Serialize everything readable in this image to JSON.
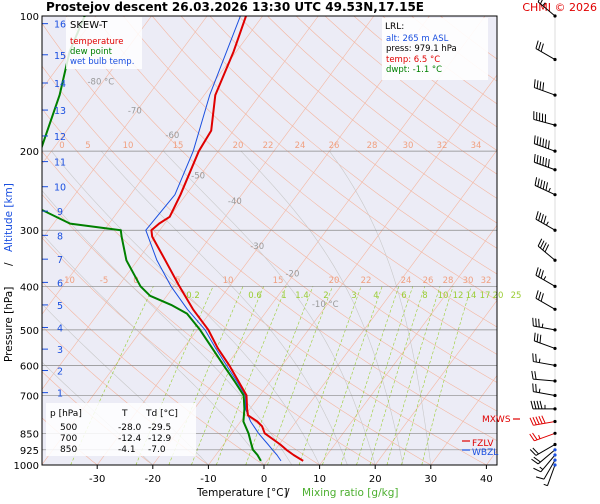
{
  "header": {
    "title": "Prostejov   descent   26.03.2026 13:30 UTC   49.53N,17.15E",
    "credit": "CHMI © 2026"
  },
  "legend": {
    "heading": "SKEW-T",
    "temperature": "temperature",
    "dewpoint": "dew point",
    "wetbulb": "wet bulb temp."
  },
  "lrl": {
    "heading": "LRL:",
    "alt": "alt: 265 m ASL",
    "press": "press: 979.1 hPa",
    "temp": "temp: 6.5 °C",
    "dwpt": "dwpt: -1.1 °C"
  },
  "level_table": {
    "headers": [
      "p [hPa]",
      "T",
      "Td [°C]"
    ],
    "rows": [
      [
        "500",
        "-28.0",
        "-29.5"
      ],
      [
        "700",
        "-12.4",
        "-12.9"
      ],
      [
        "850",
        "-4.1",
        "-7.0"
      ]
    ]
  },
  "axes": {
    "xlabel_temp": "Temperature [°C]",
    "xlabel_sep": "/",
    "xlabel_mix": "Mixing ratio [g/kg]",
    "ylabel_left": "Pressure [hPa]",
    "ylabel_sep": "/",
    "ylabel_right": "Altitude [km]",
    "pressure_ticks": [
      100,
      200,
      300,
      400,
      500,
      600,
      700,
      850,
      925,
      1000
    ],
    "temp_ticks": [
      -30,
      -20,
      -10,
      0,
      10,
      20,
      30,
      40
    ],
    "altitude_ticks": [
      16,
      15,
      14,
      13,
      12,
      11,
      10,
      9,
      8,
      7,
      6,
      5,
      4,
      3,
      2,
      1
    ],
    "xlim": [
      -36,
      48
    ],
    "ylim": [
      1000,
      100
    ],
    "skew_note": "skewed temperature isotherms, log pressure",
    "isotherm_labels": [
      "-80 °C",
      "-70",
      "-60",
      "-50",
      "-40",
      "-30",
      "-20",
      "-10 °C"
    ],
    "theta_labels_top": [
      "0",
      "5",
      "10",
      "15",
      "20",
      "22",
      "24",
      "26",
      "28",
      "30",
      "32",
      "34"
    ],
    "theta_labels_mid": [
      "-10",
      "-5",
      "0",
      "5",
      "10",
      "15",
      "20",
      "22",
      "24",
      "26",
      "28",
      "30",
      "32",
      "34"
    ],
    "mixing_labels": [
      "0.2",
      "0.6",
      "1",
      "1.4",
      "2",
      "3",
      "4",
      "6",
      "8",
      "10",
      "12",
      "14",
      "17",
      "20",
      "25"
    ]
  },
  "markers": {
    "mxws": "MXWS",
    "fzlv": "FZLV",
    "wbzl": "WBZL"
  },
  "colors": {
    "temperature": "#e00000",
    "dewpoint": "#008000",
    "wetbulb": "#1a4fe0",
    "isotherm": "#f4b6a0",
    "dry_adiabat": "#f4b6a0",
    "moist_adiabat": "#c8c8c8",
    "mixing": "#9acd32",
    "isobar": "#888888",
    "background_upper": "#ececf6",
    "title_credit": "#e00000"
  },
  "chart_data": {
    "type": "line",
    "title": "Prostejov   descent   26.03.2026 13:30 UTC   49.53N,17.15E",
    "xlabel": "Temperature [°C]",
    "ylabel": "Pressure [hPa]",
    "xlim": [
      -36,
      48
    ],
    "ylim": [
      1000,
      100
    ],
    "series": [
      {
        "name": "temperature",
        "points": [
          [
            979,
            6.5
          ],
          [
            950,
            4.0
          ],
          [
            925,
            2.0
          ],
          [
            900,
            0.2
          ],
          [
            850,
            -4.1
          ],
          [
            820,
            -5.5
          ],
          [
            800,
            -7.0
          ],
          [
            775,
            -9.5
          ],
          [
            750,
            -10.5
          ],
          [
            700,
            -12.4
          ],
          [
            650,
            -15.8
          ],
          [
            600,
            -19.5
          ],
          [
            550,
            -23.8
          ],
          [
            500,
            -28.0
          ],
          [
            450,
            -33.5
          ],
          [
            400,
            -39.0
          ],
          [
            350,
            -45.0
          ],
          [
            310,
            -50.5
          ],
          [
            300,
            -51.5
          ],
          [
            290,
            -51.0
          ],
          [
            280,
            -50.0
          ],
          [
            250,
            -51.0
          ],
          [
            200,
            -53.5
          ],
          [
            180,
            -54.0
          ],
          [
            150,
            -58.0
          ],
          [
            120,
            -60.5
          ],
          [
            100,
            -63.0
          ]
        ]
      },
      {
        "name": "dew point",
        "points": [
          [
            979,
            -1.1
          ],
          [
            950,
            -2.5
          ],
          [
            925,
            -4.0
          ],
          [
            900,
            -5.0
          ],
          [
            850,
            -7.0
          ],
          [
            800,
            -9.5
          ],
          [
            750,
            -11.0
          ],
          [
            700,
            -12.9
          ],
          [
            650,
            -16.5
          ],
          [
            600,
            -20.5
          ],
          [
            550,
            -24.8
          ],
          [
            500,
            -29.5
          ],
          [
            460,
            -34.0
          ],
          [
            440,
            -38.0
          ],
          [
            420,
            -43.0
          ],
          [
            400,
            -46.0
          ],
          [
            350,
            -52.0
          ],
          [
            310,
            -56.0
          ],
          [
            300,
            -57.0
          ],
          [
            290,
            -67.0
          ],
          [
            270,
            -74.0
          ],
          [
            250,
            -78.0
          ],
          [
            220,
            -80.0
          ],
          [
            200,
            -82.0
          ],
          [
            150,
            -86.0
          ],
          [
            120,
            -90.0
          ],
          [
            100,
            -92.0
          ]
        ]
      },
      {
        "name": "wet bulb temp.",
        "points": [
          [
            979,
            2.5
          ],
          [
            950,
            1.0
          ],
          [
            925,
            -0.5
          ],
          [
            900,
            -2.0
          ],
          [
            850,
            -5.2
          ],
          [
            800,
            -8.2
          ],
          [
            750,
            -10.8
          ],
          [
            700,
            -12.6
          ],
          [
            650,
            -16.1
          ],
          [
            600,
            -20.0
          ],
          [
            550,
            -24.2
          ],
          [
            500,
            -28.6
          ],
          [
            450,
            -34.5
          ],
          [
            400,
            -40.5
          ],
          [
            350,
            -46.5
          ],
          [
            300,
            -52.5
          ],
          [
            250,
            -52.0
          ],
          [
            200,
            -54.5
          ],
          [
            150,
            -59.0
          ],
          [
            100,
            -64.0
          ]
        ]
      }
    ],
    "wind_barbs": [
      {
        "p": 1000,
        "dir": 200,
        "spd": 5
      },
      {
        "p": 975,
        "dir": 210,
        "spd": 10
      },
      {
        "p": 950,
        "dir": 220,
        "spd": 15
      },
      {
        "p": 925,
        "dir": 230,
        "spd": 20
      },
      {
        "p": 900,
        "dir": 240,
        "spd": 20
      },
      {
        "p": 850,
        "dir": 250,
        "spd": 25
      },
      {
        "p": 800,
        "dir": 260,
        "spd": 50
      },
      {
        "p": 750,
        "dir": 270,
        "spd": 45
      },
      {
        "p": 700,
        "dir": 280,
        "spd": 25
      },
      {
        "p": 650,
        "dir": 275,
        "spd": 20
      },
      {
        "p": 600,
        "dir": 280,
        "spd": 25
      },
      {
        "p": 550,
        "dir": 290,
        "spd": 30
      },
      {
        "p": 500,
        "dir": 280,
        "spd": 35
      },
      {
        "p": 450,
        "dir": 300,
        "spd": 30
      },
      {
        "p": 400,
        "dir": 300,
        "spd": 35
      },
      {
        "p": 350,
        "dir": 310,
        "spd": 40
      },
      {
        "p": 300,
        "dir": 300,
        "spd": 45
      },
      {
        "p": 250,
        "dir": 295,
        "spd": 55
      },
      {
        "p": 220,
        "dir": 290,
        "spd": 60
      },
      {
        "p": 200,
        "dir": 290,
        "spd": 60
      },
      {
        "p": 175,
        "dir": 285,
        "spd": 50
      },
      {
        "p": 150,
        "dir": 290,
        "spd": 40
      },
      {
        "p": 125,
        "dir": 300,
        "spd": 30
      },
      {
        "p": 100,
        "dir": 310,
        "spd": 25
      }
    ]
  }
}
